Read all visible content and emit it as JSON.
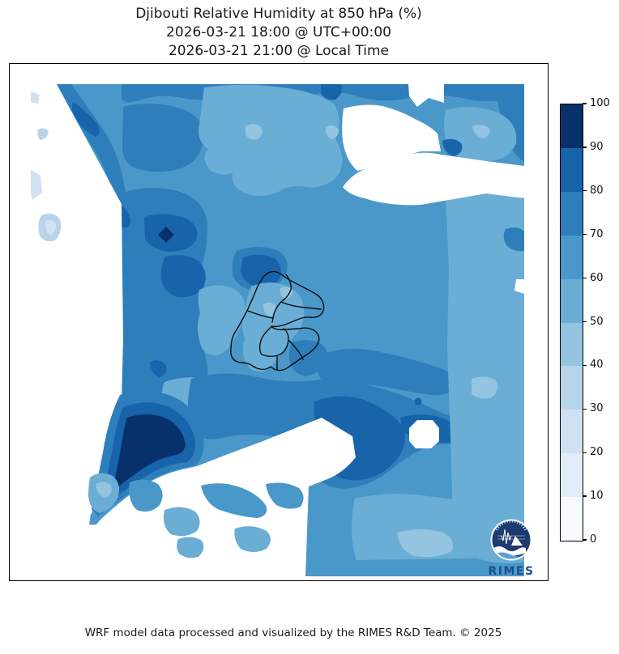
{
  "figure": {
    "title_line1": "Djibouti Relative Humidity at 850 hPa (%)",
    "title_line2": "2026-03-21 18:00 @ UTC+00:00",
    "title_line3": "2026-03-21 21:00 @ Local Time",
    "footer": "WRF model data processed and visualized by the RIMES R&D Team. © 2025"
  },
  "logo": {
    "text": "RIMES"
  },
  "chart_data": {
    "type": "heatmap",
    "subtype": "filled_contour_map",
    "title": "Djibouti Relative Humidity at 850 hPa (%)",
    "valid_time_utc": "2026-03-21 18:00 @ UTC+00:00",
    "valid_time_local": "2026-03-21 21:00 @ Local Time",
    "variable": "Relative Humidity",
    "pressure_level": "850 hPa",
    "units": "%",
    "colorbar": {
      "orientation": "vertical",
      "min": 0,
      "max": 100,
      "levels": [
        0,
        10,
        20,
        30,
        40,
        50,
        60,
        70,
        80,
        90,
        100
      ],
      "tick_labels": [
        "0",
        "10",
        "20",
        "30",
        "40",
        "50",
        "60",
        "70",
        "80",
        "90",
        "100"
      ],
      "colors": [
        "#f7fbff",
        "#e1edf8",
        "#d0e1f2",
        "#b7d4ea",
        "#94c4df",
        "#6aaed6",
        "#4a98c9",
        "#2e7ebc",
        "#1764ab",
        "#08306b"
      ],
      "colormap": "Blues"
    },
    "overlay": "Djibouti national and regional administrative boundaries",
    "masked_color": "#ffffff",
    "approx_field_readings": [
      {
        "area": "northern band across domain",
        "rh_percent": [
          70,
          80
        ]
      },
      {
        "area": "upper-centre lobe",
        "rh_percent": [
          50,
          60
        ]
      },
      {
        "area": "west-central cores",
        "rh_percent": [
          80,
          100
        ]
      },
      {
        "area": "around Djibouti borders (centre)",
        "rh_percent": [
          50,
          70
        ]
      },
      {
        "area": "eastern flank",
        "rh_percent": [
          40,
          60
        ]
      },
      {
        "area": "southwest ridge",
        "rh_percent": [
          80,
          100
        ]
      },
      {
        "area": "south-central core with clear hole",
        "rh_percent": [
          80,
          90
        ]
      },
      {
        "area": "south-east sector",
        "rh_percent": [
          40,
          60
        ]
      },
      {
        "area": "white patches (NW, E, S)",
        "rh_percent": "masked / below range"
      }
    ]
  }
}
